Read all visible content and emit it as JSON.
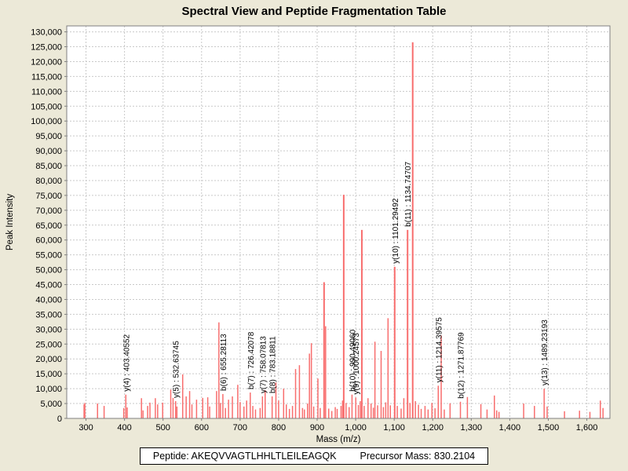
{
  "chart_data": {
    "type": "bar",
    "subtype": "mass-spectrum-stick-plot",
    "title": "Spectral View and Peptide Fragmentation Table",
    "xlabel": "Mass (m/z)",
    "ylabel": "Peak Intensity",
    "xlim": [
      250,
      1660
    ],
    "ylim": [
      0,
      132000
    ],
    "grid": "dashed",
    "x_ticks": [
      300,
      400,
      500,
      600,
      700,
      800,
      900,
      1000,
      1100,
      1200,
      1300,
      1400,
      1500,
      1600
    ],
    "y_ticks": [
      0,
      5000,
      10000,
      15000,
      20000,
      25000,
      30000,
      35000,
      40000,
      45000,
      50000,
      55000,
      60000,
      65000,
      70000,
      75000,
      80000,
      85000,
      90000,
      95000,
      100000,
      105000,
      110000,
      115000,
      120000,
      125000,
      130000
    ],
    "peak_color": "#f86e6e",
    "peaks": [
      [
        295,
        4700
      ],
      [
        297,
        5200
      ],
      [
        330,
        5000
      ],
      [
        347,
        4200
      ],
      [
        398,
        3500
      ],
      [
        403.40552,
        8000
      ],
      [
        407,
        3700
      ],
      [
        444,
        6800
      ],
      [
        448,
        2700
      ],
      [
        460,
        4200
      ],
      [
        466,
        5300
      ],
      [
        480,
        6800
      ],
      [
        486,
        4700
      ],
      [
        499,
        5300
      ],
      [
        520,
        9700
      ],
      [
        526,
        6900
      ],
      [
        532.63745,
        5800
      ],
      [
        536,
        4000
      ],
      [
        551,
        14800
      ],
      [
        560,
        7400
      ],
      [
        569,
        9200
      ],
      [
        575,
        4700
      ],
      [
        587,
        6300
      ],
      [
        603,
        6900
      ],
      [
        616,
        7100
      ],
      [
        621,
        4000
      ],
      [
        639,
        9200
      ],
      [
        645,
        32300
      ],
      [
        649,
        5200
      ],
      [
        655.28113,
        8200
      ],
      [
        662,
        3500
      ],
      [
        670,
        6300
      ],
      [
        680,
        7400
      ],
      [
        694,
        11300
      ],
      [
        700,
        5500
      ],
      [
        710,
        4000
      ],
      [
        717,
        6000
      ],
      [
        726.42078,
        8700
      ],
      [
        733,
        4200
      ],
      [
        740,
        3000
      ],
      [
        752,
        3500
      ],
      [
        758.07813,
        7400
      ],
      [
        765,
        9500
      ],
      [
        783.18811,
        7400
      ],
      [
        793,
        12100
      ],
      [
        800,
        6000
      ],
      [
        813,
        10000
      ],
      [
        820,
        4700
      ],
      [
        828,
        3200
      ],
      [
        836,
        4200
      ],
      [
        844,
        16600
      ],
      [
        854,
        17900
      ],
      [
        862,
        3500
      ],
      [
        867,
        3000
      ],
      [
        875,
        5000
      ],
      [
        880,
        21800
      ],
      [
        885,
        25300
      ],
      [
        891,
        4000
      ],
      [
        902,
        13400
      ],
      [
        908,
        3500
      ],
      [
        918,
        45800
      ],
      [
        922,
        31000
      ],
      [
        930,
        3300
      ],
      [
        938,
        2500
      ],
      [
        947,
        3800
      ],
      [
        952,
        3200
      ],
      [
        962,
        4200
      ],
      [
        966,
        6000
      ],
      [
        969,
        75200
      ],
      [
        975,
        5200
      ],
      [
        983,
        3800
      ],
      [
        990.4906,
        8000
      ],
      [
        1000.24573,
        7000
      ],
      [
        1007,
        4500
      ],
      [
        1012,
        5800
      ],
      [
        1016,
        63400
      ],
      [
        1022,
        4200
      ],
      [
        1032,
        6800
      ],
      [
        1040,
        5000
      ],
      [
        1046,
        3600
      ],
      [
        1050,
        25800
      ],
      [
        1057,
        4400
      ],
      [
        1066,
        22700
      ],
      [
        1072,
        3800
      ],
      [
        1078,
        5400
      ],
      [
        1084,
        33700
      ],
      [
        1090,
        4400
      ],
      [
        1101.29492,
        51000
      ],
      [
        1108,
        4200
      ],
      [
        1118,
        3300
      ],
      [
        1125,
        6800
      ],
      [
        1134.74707,
        63400
      ],
      [
        1141,
        5200
      ],
      [
        1148,
        126500
      ],
      [
        1155,
        5800
      ],
      [
        1163,
        4600
      ],
      [
        1170,
        3200
      ],
      [
        1180,
        4200
      ],
      [
        1188,
        3000
      ],
      [
        1198,
        5200
      ],
      [
        1206,
        3400
      ],
      [
        1214.39575,
        11000
      ],
      [
        1222,
        27900
      ],
      [
        1230,
        3000
      ],
      [
        1245,
        5100
      ],
      [
        1271.87769,
        5600
      ],
      [
        1290,
        7200
      ],
      [
        1325,
        4800
      ],
      [
        1341,
        3000
      ],
      [
        1360,
        7700
      ],
      [
        1366,
        2700
      ],
      [
        1372,
        2200
      ],
      [
        1436,
        5000
      ],
      [
        1464,
        4200
      ],
      [
        1489.23193,
        10000
      ],
      [
        1497,
        4000
      ],
      [
        1542,
        2400
      ],
      [
        1581,
        2600
      ],
      [
        1608,
        2200
      ],
      [
        1635,
        6000
      ],
      [
        1642,
        3500
      ]
    ],
    "annotations": [
      {
        "label": "y(4) : 403.40552",
        "mz": 403.40552,
        "intensity": 8000
      },
      {
        "label": "y(5) : 532.63745",
        "mz": 532.63745,
        "intensity": 5800
      },
      {
        "label": "b(6) : 655.28113",
        "mz": 655.28113,
        "intensity": 8200
      },
      {
        "label": "b(7) : 726.42078",
        "mz": 726.42078,
        "intensity": 8700
      },
      {
        "label": "y(7) : 758.07813",
        "mz": 758.07813,
        "intensity": 7400
      },
      {
        "label": "b(8) : 783.18811",
        "mz": 783.18811,
        "intensity": 7400
      },
      {
        "label": "b(10) : 990.49060",
        "mz": 990.4906,
        "intensity": 8000
      },
      {
        "label": "y(9) : 1000.24573",
        "mz": 1000.24573,
        "intensity": 7000
      },
      {
        "label": "y(10) : 1101.29492",
        "mz": 1101.29492,
        "intensity": 51000
      },
      {
        "label": "b(11) : 1134.74707",
        "mz": 1134.74707,
        "intensity": 63400
      },
      {
        "label": "y(11) : 1214.39575",
        "mz": 1214.39575,
        "intensity": 11000
      },
      {
        "label": "b(12) : 1271.87769",
        "mz": 1271.87769,
        "intensity": 5600
      },
      {
        "label": "y(13) : 1489.23193",
        "mz": 1489.23193,
        "intensity": 10000
      }
    ],
    "colors": {
      "page_background": "#ece9d8",
      "plot_background": "#ffffff",
      "gridline": "#c9c9c9",
      "plot_border": "#7f7f7f",
      "text": "#000000"
    }
  },
  "footer": {
    "peptide": "Peptide: AKEQVVAGTLHHLTLEILEAGQK",
    "precursor": "Precursor Mass: 830.2104"
  }
}
